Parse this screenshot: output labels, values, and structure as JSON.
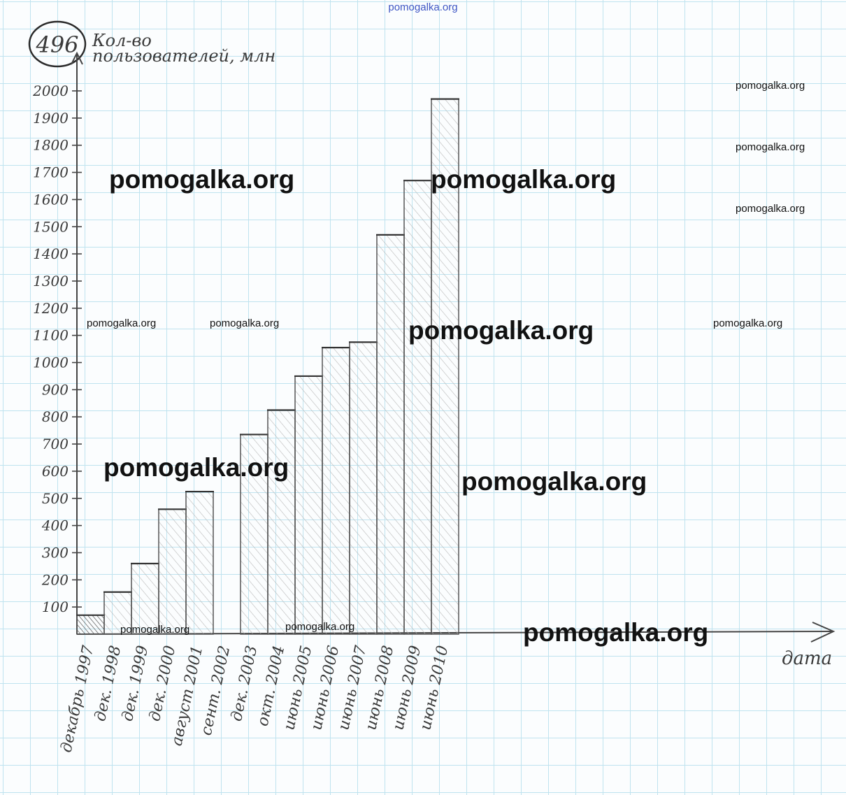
{
  "problem_number": "496",
  "chart_data": {
    "type": "bar",
    "ylabel": "Кол-во пользователей, млн",
    "xlabel": "дата",
    "ylim": [
      0,
      2000
    ],
    "yticks": [
      100,
      200,
      300,
      400,
      500,
      600,
      700,
      800,
      900,
      1000,
      1100,
      1200,
      1300,
      1400,
      1500,
      1600,
      1700,
      1800,
      1900,
      2000
    ],
    "categories": [
      "декабрь 1997",
      "дек. 1998",
      "дек. 1999",
      "дек. 2000",
      "август 2001",
      "сент. 2002",
      "дек. 2003",
      "окт. 2004",
      "июнь 2005",
      "июнь 2006",
      "июнь 2007",
      "июнь 2008",
      "июнь 2009",
      "июнь 2010"
    ],
    "values": [
      70,
      155,
      260,
      460,
      525,
      0,
      735,
      825,
      950,
      1055,
      1075,
      1470,
      1670,
      1970
    ],
    "grid": true
  },
  "watermarks": {
    "top": "pomogalka.org",
    "big_label": "pomogalka.org",
    "small_label": "pomogalka.org"
  }
}
